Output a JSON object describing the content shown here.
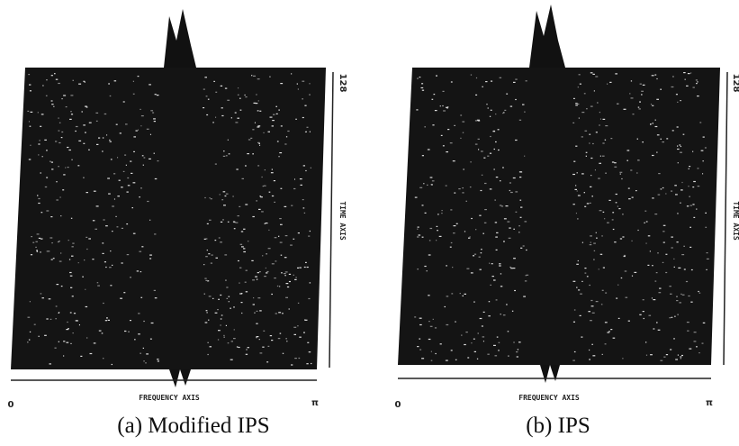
{
  "panels": [
    {
      "caption": "(a) Modified IPS",
      "x_axis_title": "FREQUENCY AXIS",
      "x_start": "0",
      "x_end": "π",
      "y_axis_title": "TIME AXIS",
      "y_end": "128"
    },
    {
      "caption": "(b) IPS",
      "x_axis_title": "FREQUENCY AXIS",
      "x_start": "0",
      "x_end": "π",
      "y_axis_title": "TIME AXIS",
      "y_end": "128"
    }
  ]
}
